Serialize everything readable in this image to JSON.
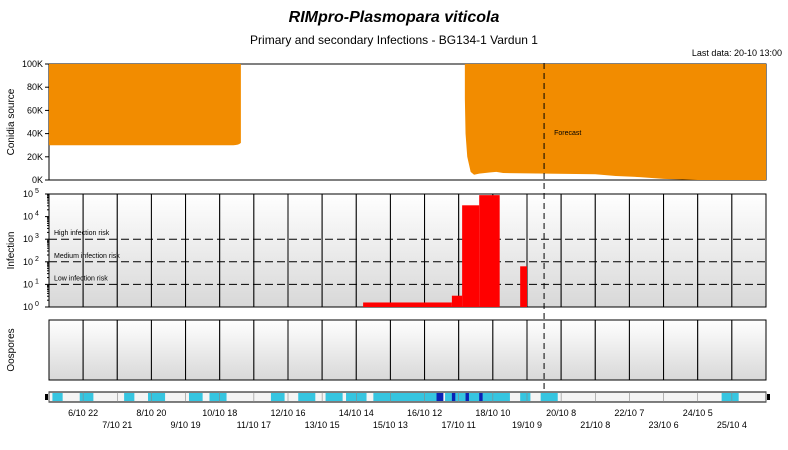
{
  "title": "RIMpro-Plasmopara viticola",
  "subtitle": "Primary and secondary Infections - BG134-1 Vardun 1",
  "last_data": "Last data: 20-10 13:00",
  "chart_data": [
    {
      "type": "area",
      "ylabel": "Conidia source",
      "ylim": [
        0,
        100000
      ],
      "yticks": [
        "0K",
        "20K",
        "40K",
        "60K",
        "80K",
        "100K"
      ],
      "forecast_label": "Forecast",
      "forecast_start_day": 14.5,
      "color": "#f28c00",
      "segments": [
        {
          "x": [
            0,
            5.6
          ],
          "y": [
            30000,
            30000
          ],
          "y_top": 100000
        },
        {
          "x": [
            12.15,
            12.5,
            13.1
          ],
          "y_top": 100000,
          "y_bottom_note": "steep rise"
        }
      ],
      "x_days": [
        0,
        5.6,
        5.61,
        12.1,
        12.2,
        12.3,
        12.5,
        13.0,
        13.5,
        16.0,
        16.6,
        17.0,
        17.5,
        18.2,
        19.0,
        21.0
      ],
      "y_values": [
        100000,
        100000,
        0,
        0,
        100000,
        20000,
        10000,
        10000,
        100000,
        100000,
        6000,
        3000,
        2000,
        0,
        0,
        0
      ]
    },
    {
      "type": "bar",
      "ylabel": "Infection",
      "scale": "log",
      "ylim_exp": [
        0,
        5
      ],
      "thresholds": [
        {
          "label": "High infection risk",
          "exp": 3
        },
        {
          "label": "Medium infection risk",
          "exp": 2
        },
        {
          "label": "Low infection risk",
          "exp": 1
        }
      ],
      "color": "#ff0000",
      "segments": [
        {
          "x": [
            9.2,
            11.8
          ],
          "exp": 0.2
        },
        {
          "x": [
            11.8,
            12.1
          ],
          "exp": 0.5
        },
        {
          "x": [
            12.1,
            12.6
          ],
          "exp": 4.5
        },
        {
          "x": [
            12.6,
            13.2
          ],
          "exp": 4.95
        },
        {
          "x": [
            13.8,
            14.0
          ],
          "exp": 1.8
        }
      ]
    },
    {
      "type": "bar",
      "ylabel": "Oospores",
      "series": []
    }
  ],
  "days": {
    "count": 21,
    "labels_top": [
      "6/10 22",
      "8/10 20",
      "10/10 18",
      "12/10 16",
      "14/10 14",
      "16/10 12",
      "18/10 10",
      "20/10 8",
      "22/10 7",
      "24/10 5"
    ],
    "labels_bottom": [
      "7/10 21",
      "9/10 19",
      "11/10 17",
      "13/10 15",
      "15/10 13",
      "17/10 11",
      "19/10 9",
      "21/10 8",
      "23/10 6",
      "25/10 4"
    ]
  },
  "wetness_strip": {
    "color_light": "#36c5e0",
    "color_dark": "#0b22b5",
    "light": [
      [
        0.1,
        0.4
      ],
      [
        0.9,
        1.3
      ],
      [
        2.2,
        2.5
      ],
      [
        2.9,
        3.4
      ],
      [
        4.1,
        4.5
      ],
      [
        4.7,
        5.2
      ],
      [
        6.5,
        6.9
      ],
      [
        7.3,
        7.8
      ],
      [
        8.1,
        8.6
      ],
      [
        8.7,
        9.3
      ],
      [
        9.5,
        11.4
      ],
      [
        11.6,
        13.5
      ],
      [
        13.8,
        14.1
      ],
      [
        14.4,
        14.9
      ],
      [
        19.7,
        20.2
      ]
    ],
    "dark": [
      [
        11.35,
        11.55
      ],
      [
        11.8,
        11.9
      ],
      [
        12.2,
        12.3
      ],
      [
        12.6,
        12.7
      ]
    ]
  },
  "colors": {
    "orange": "#f28c00",
    "red": "#ff0000",
    "grid": "#000000"
  }
}
